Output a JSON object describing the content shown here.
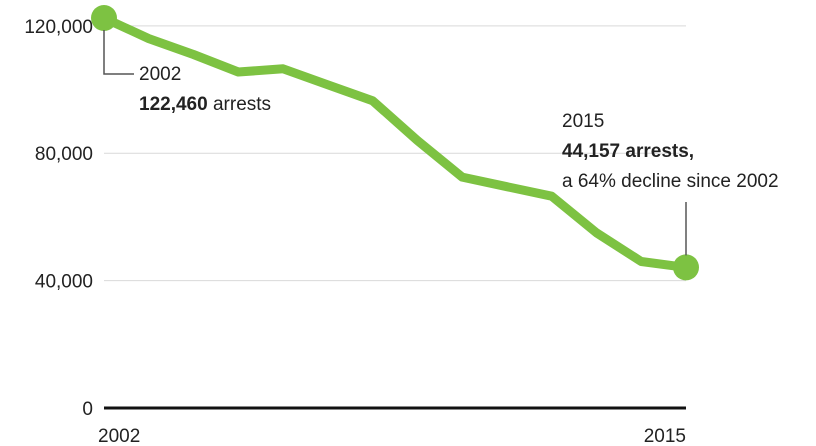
{
  "chart_data": {
    "type": "line",
    "title": "",
    "xlabel": "",
    "ylabel": "",
    "x": [
      2002,
      2003,
      2004,
      2005,
      2006,
      2007,
      2008,
      2009,
      2010,
      2011,
      2012,
      2013,
      2014,
      2015
    ],
    "series": [
      {
        "values": [
          122460,
          116000,
          111000,
          105500,
          106500,
          101500,
          96500,
          84000,
          72500,
          69500,
          66500,
          55000,
          46000,
          44157
        ]
      }
    ],
    "xlim": [
      2002,
      2015
    ],
    "ylim": [
      0,
      122460
    ],
    "y_ticks": [
      {
        "value": 0,
        "label": "0"
      },
      {
        "value": 40000,
        "label": "40,000"
      },
      {
        "value": 80000,
        "label": "80,000"
      },
      {
        "value": 120000,
        "label": "120,000"
      }
    ],
    "x_ticks": [
      {
        "value": 2002,
        "label": "2002"
      },
      {
        "value": 2015,
        "label": "2015"
      }
    ],
    "grid": true,
    "colors": {
      "line": "#7dc242",
      "grid": "#d9d9d9",
      "axis": "#111111",
      "leader": "#555555"
    },
    "annotations": [
      {
        "x": 2002,
        "y": 122460,
        "year": "2002",
        "value": "122,460",
        "suffix": " arrests"
      },
      {
        "x": 2015,
        "y": 44157,
        "year": "2015",
        "value": "44,157 arrests,",
        "note": "a 64% decline since 2002"
      }
    ]
  }
}
